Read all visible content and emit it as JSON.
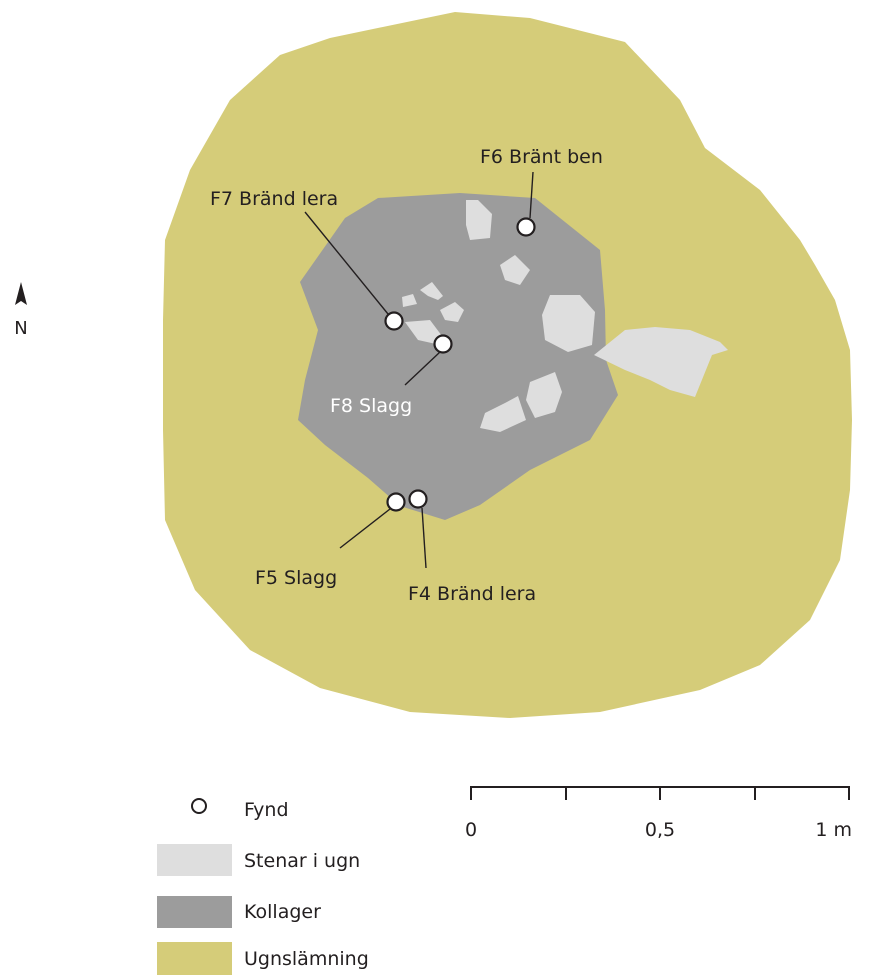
{
  "colors": {
    "ugnslamning": "#d5cc79",
    "kollager": "#9c9c9c",
    "stenar": "#dedede",
    "fynd_fill": "#ffffff",
    "stroke": "#231f20"
  },
  "north_label": "N",
  "finds": [
    {
      "label": "F6 Bränt ben"
    },
    {
      "label": "F7 Bränd lera"
    },
    {
      "label": "F8 Slagg"
    },
    {
      "label": "F5 Slagg"
    },
    {
      "label": "F4 Bränd lera"
    }
  ],
  "legend": {
    "fynd": "Fynd",
    "stenar": "Stenar i ugn",
    "kollager": "Kollager",
    "ugnslamning": "Ugnslämning"
  },
  "scale": {
    "ticks": [
      "0",
      "0,5",
      "1 m"
    ]
  }
}
